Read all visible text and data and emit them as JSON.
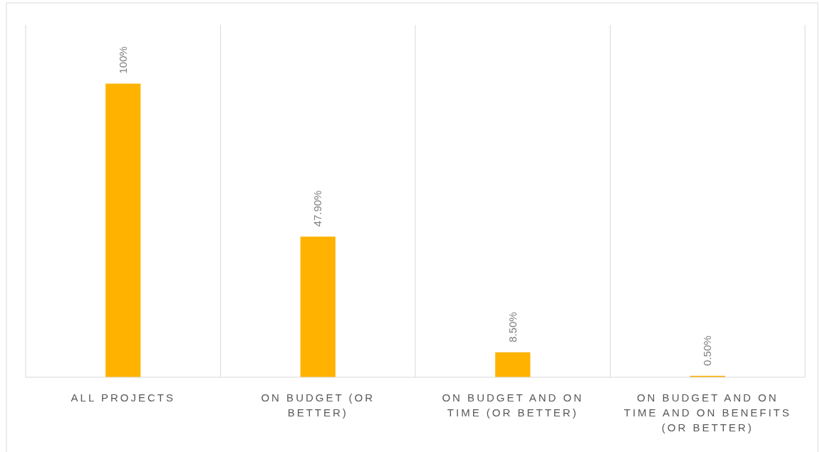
{
  "chart_data": {
    "type": "bar",
    "categories": [
      "ALL PROJECTS",
      "ON BUDGET (OR BETTER)",
      "ON BUDGET AND ON TIME (OR BETTER)",
      "ON BUDGET AND ON TIME AND ON BENEFITS (OR BETTER)"
    ],
    "values": [
      100,
      47.9,
      8.5,
      0.5
    ],
    "value_labels": [
      "100%",
      "47.90%",
      "8.50%",
      "0.50%"
    ],
    "color": "#ffb300",
    "grid": "x"
  }
}
